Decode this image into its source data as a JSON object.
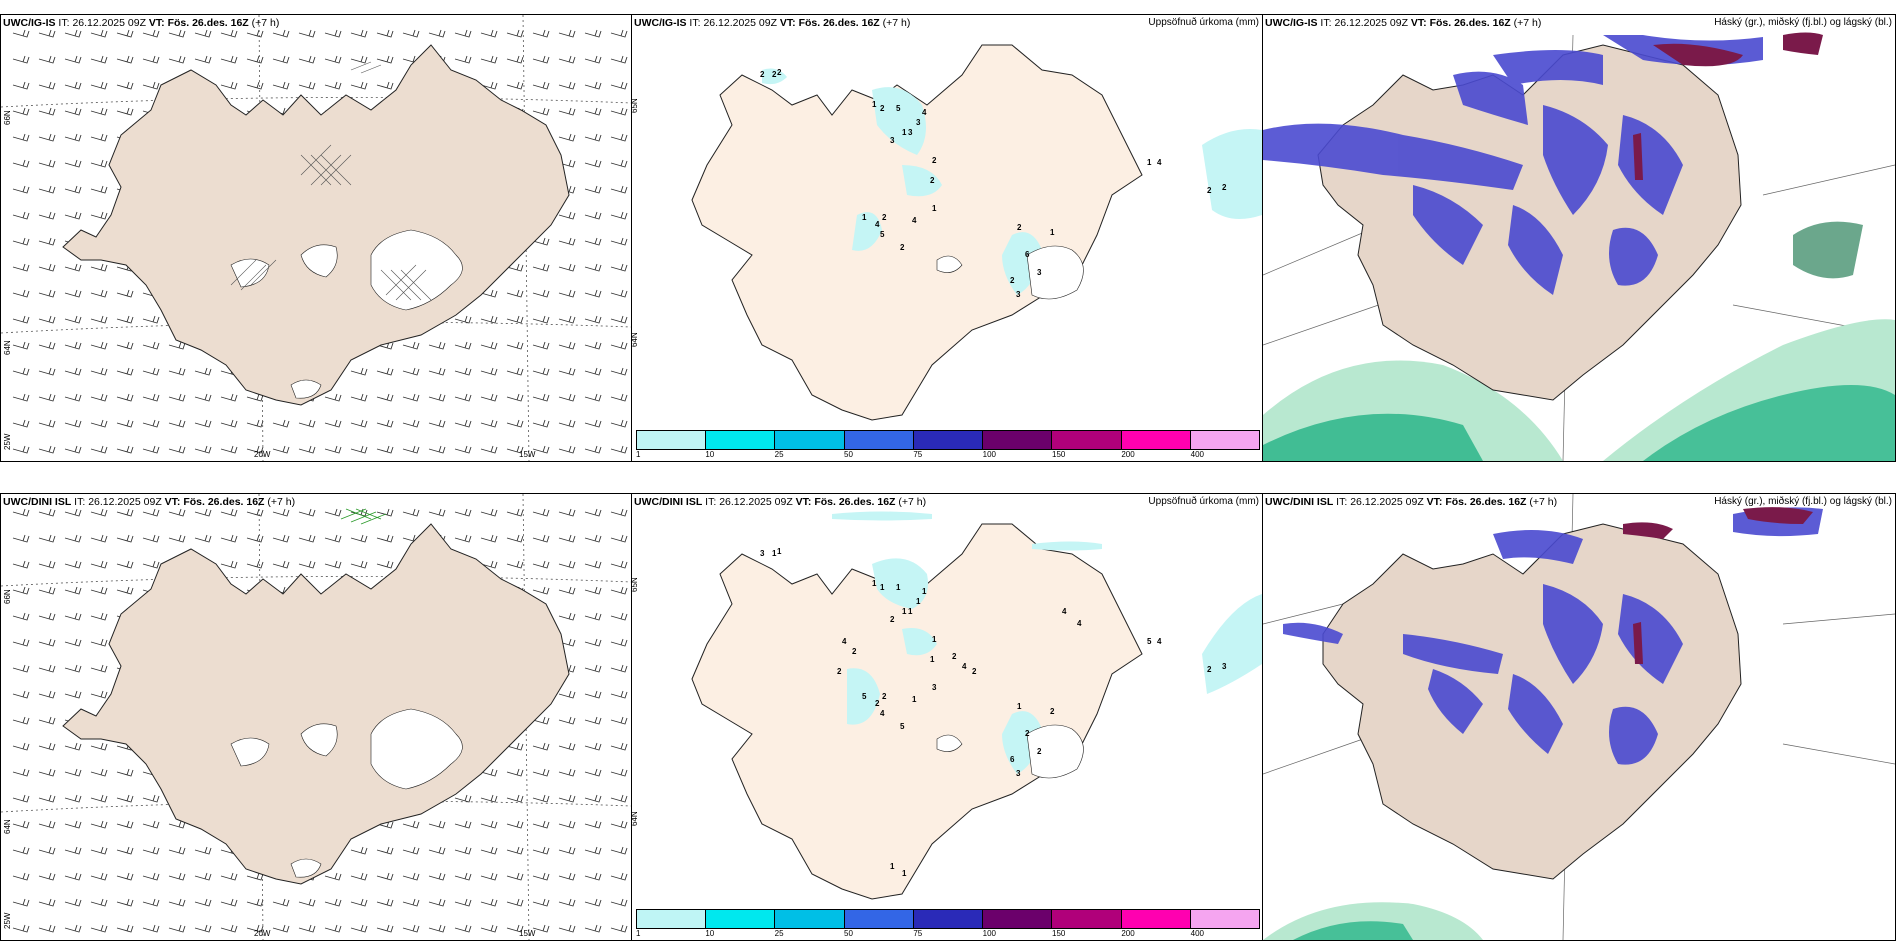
{
  "panels": {
    "top_wind": {
      "model": "UWC/IG-IS",
      "it_label": "IT:",
      "it_value": "26.12.2025 09Z",
      "vt_label": "VT:",
      "vt_value": "Fös. 26.des. 16Z",
      "lead": "(+7 h)",
      "lon_labels": [
        "20W",
        "15W"
      ],
      "lat_labels": [
        "66N",
        "64N",
        "25W"
      ]
    },
    "top_precip": {
      "model": "UWC/IG-IS",
      "it_label": "IT:",
      "it_value": "26.12.2025 09Z",
      "vt_label": "VT:",
      "vt_value": "Fös. 26.des. 16Z",
      "lead": "(+7 h)",
      "title_right": "Uppsöfnuð úrkoma (mm)",
      "lat_labels": [
        "65N",
        "64N"
      ],
      "station_values": [
        "2",
        "2",
        "2",
        "1",
        "2",
        "5",
        "1",
        "3",
        "3",
        "3",
        "4",
        "2",
        "2",
        "1",
        "4",
        "2",
        "5",
        "2",
        "4",
        "1",
        "3",
        "1",
        "2",
        "6",
        "3",
        "2",
        "1",
        "4",
        "2",
        "2"
      ]
    },
    "top_cloud": {
      "model": "UWC/IG-IS",
      "it_label": "IT:",
      "it_value": "26.12.2025 09Z",
      "vt_label": "VT:",
      "vt_value": "Fös. 26.des. 16Z",
      "lead": "(+7 h)",
      "title_right": "Háský (gr.), miðský (fj.bl.) og lágský (bl.)"
    },
    "bottom_wind": {
      "model": "UWC/DINI ISL",
      "it_label": "IT:",
      "it_value": "26.12.2025 09Z",
      "vt_label": "VT:",
      "vt_value": "Fös. 26.des. 16Z",
      "lead": "(+7 h)",
      "lon_labels": [
        "20W",
        "15W"
      ],
      "lat_labels": [
        "66N",
        "64N",
        "25W"
      ]
    },
    "bottom_precip": {
      "model": "UWC/DINI ISL",
      "it_label": "IT:",
      "it_value": "26.12.2025 09Z",
      "vt_label": "VT:",
      "vt_value": "Fös. 26.des. 16Z",
      "lead": "(+7 h)",
      "title_right": "Uppsöfnuð úrkoma (mm)",
      "lat_labels": [
        "65N",
        "64N"
      ],
      "station_values": [
        "3",
        "1",
        "1",
        "1",
        "1",
        "1",
        "1",
        "2",
        "1",
        "1",
        "1",
        "1",
        "1",
        "5",
        "2",
        "2",
        "4",
        "5",
        "1",
        "3",
        "2",
        "2",
        "1",
        "2",
        "3",
        "6",
        "5",
        "4",
        "2",
        "3",
        "4",
        "2",
        "2",
        "2",
        "4",
        "2",
        "4",
        "4",
        "1",
        "1"
      ]
    },
    "bottom_cloud": {
      "model": "UWC/DINI ISL",
      "it_label": "IT:",
      "it_value": "26.12.2025 09Z",
      "vt_label": "VT:",
      "vt_value": "Fös. 26.des. 16Z",
      "lead": "(+7 h)",
      "title_right": "Háský (gr.), miðský (fj.bl.) og lágský (bl.)"
    }
  },
  "colorbar": {
    "ticks": [
      "1",
      "10",
      "25",
      "50",
      "75",
      "100",
      "150",
      "200",
      "400"
    ],
    "colors": [
      "#bff5f5",
      "#00e8ee",
      "#00bfe6",
      "#3366e6",
      "#2a2ab8",
      "#6b006b",
      "#b0007a",
      "#ff00b0",
      "#f5a5f0"
    ]
  },
  "colors": {
    "land": "#ecddd0",
    "land_precip": "#fcefe3",
    "glacier": "#ffffff",
    "precip_light": "#c5f5f5",
    "high_cloud": "#a8e0c8",
    "mid_cloud": "#2bb58a",
    "low_cloud": "#4a4ad0"
  }
}
